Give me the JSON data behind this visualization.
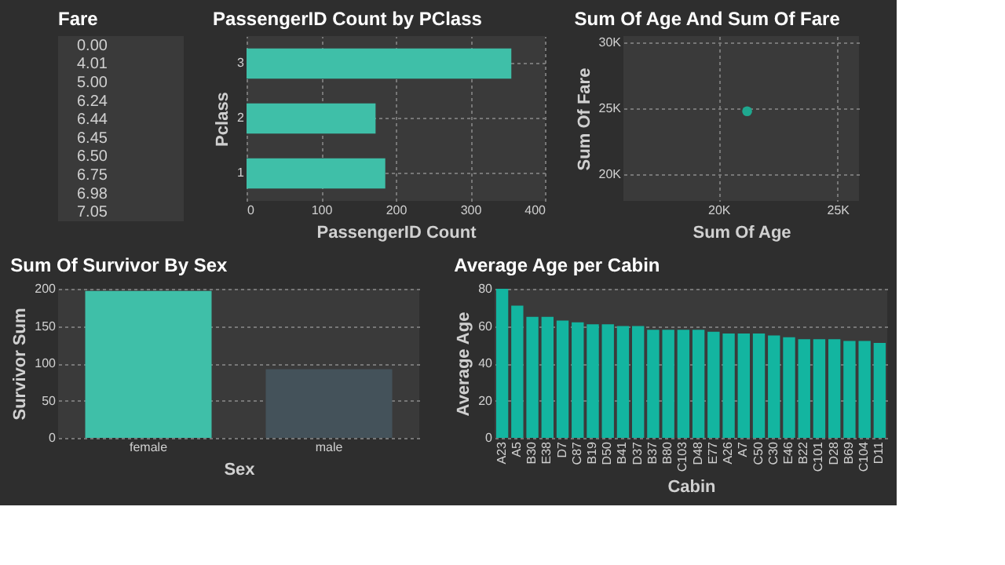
{
  "chart_data": [
    {
      "type": "other",
      "title": "Fare",
      "annotations": [
        "0.00",
        "4.01",
        "5.00",
        "6.24",
        "6.44",
        "6.45",
        "6.50",
        "6.75",
        "6.98",
        "7.05"
      ]
    },
    {
      "type": "bar",
      "title": "PassengerID Count by PClass",
      "orientation": "horizontal",
      "categories": [
        "3",
        "2",
        "1"
      ],
      "values": [
        355,
        173,
        186
      ],
      "color": "#3fbfa8",
      "xlim": [
        0,
        400
      ],
      "xticks": [
        0,
        100,
        200,
        300,
        400
      ],
      "xlabel": "PassengerID Count",
      "ylabel": "Pclass",
      "grid": true
    },
    {
      "type": "scatter",
      "title": "Sum Of Age And Sum Of Fare",
      "x": [
        21200
      ],
      "values": [
        24800
      ],
      "color": "#1fa88f",
      "marker": "circle",
      "xlim": [
        16000,
        25900
      ],
      "xticks": [
        {
          "value": 20000,
          "label": "20K"
        },
        {
          "value": 25000,
          "label": "25K"
        }
      ],
      "ylim": [
        18000,
        30500
      ],
      "yticks": [
        {
          "value": 20000,
          "label": "20K"
        },
        {
          "value": 25000,
          "label": "25K"
        },
        {
          "value": 30000,
          "label": "30K"
        }
      ],
      "xlabel": "Sum Of Age",
      "ylabel": "Sum Of Fare",
      "grid": true
    },
    {
      "type": "bar",
      "title": "Sum Of Survivor By Sex",
      "categories": [
        "female",
        "male"
      ],
      "values": [
        197,
        92
      ],
      "colors": [
        "#3fbfa8",
        "#44525a"
      ],
      "ylim": [
        0,
        200
      ],
      "yticks": [
        0,
        50,
        100,
        150,
        200
      ],
      "xlabel": "Sex",
      "ylabel": "Survivor Sum",
      "grid": "y"
    },
    {
      "type": "bar",
      "title": "Average Age per Cabin",
      "categories": [
        "A23",
        "A5",
        "B30",
        "E38",
        "D7",
        "C87",
        "B19",
        "D50",
        "B41",
        "D37",
        "B37",
        "B80",
        "C103",
        "D48",
        "E77",
        "A26",
        "A7",
        "C50",
        "C30",
        "E46",
        "B22",
        "C101",
        "D28",
        "B69",
        "C104",
        "D11"
      ],
      "values": [
        80,
        71,
        65,
        65,
        63,
        62,
        61,
        61,
        60,
        60,
        58,
        58,
        58,
        58,
        57,
        56,
        56,
        56,
        55,
        54,
        53,
        53,
        53,
        52,
        52,
        51
      ],
      "color": "#13b5a0",
      "ylim": [
        0,
        80
      ],
      "yticks": [
        0,
        20,
        40,
        60,
        80
      ],
      "xlabel": "Cabin",
      "ylabel": "Average Age",
      "grid": "y"
    }
  ]
}
